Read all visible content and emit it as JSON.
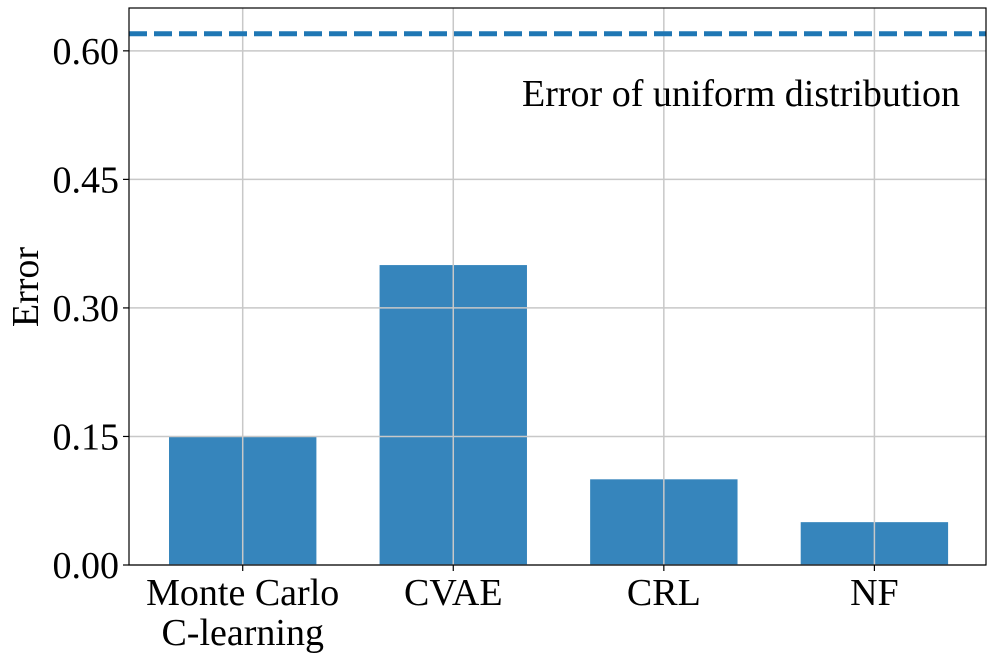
{
  "chart_data": {
    "type": "bar",
    "title": "",
    "xlabel": "",
    "ylabel": "Error",
    "categories": [
      [
        "Monte Carlo",
        "C-learning"
      ],
      [
        "CVAE"
      ],
      [
        "CRL"
      ],
      [
        "NF"
      ]
    ],
    "values": [
      0.15,
      0.35,
      0.1,
      0.05
    ],
    "ylim": [
      0,
      0.65
    ],
    "yticks": [
      0.0,
      0.15,
      0.3,
      0.45,
      0.6
    ],
    "ytick_labels": [
      "0.00",
      "0.15",
      "0.30",
      "0.45",
      "0.60"
    ],
    "bar_color": "#3685bc",
    "grid": true,
    "reference_line": {
      "value": 0.62,
      "style": "dashed",
      "color": "#1f77b4",
      "label": "Error of uniform distribution"
    }
  }
}
